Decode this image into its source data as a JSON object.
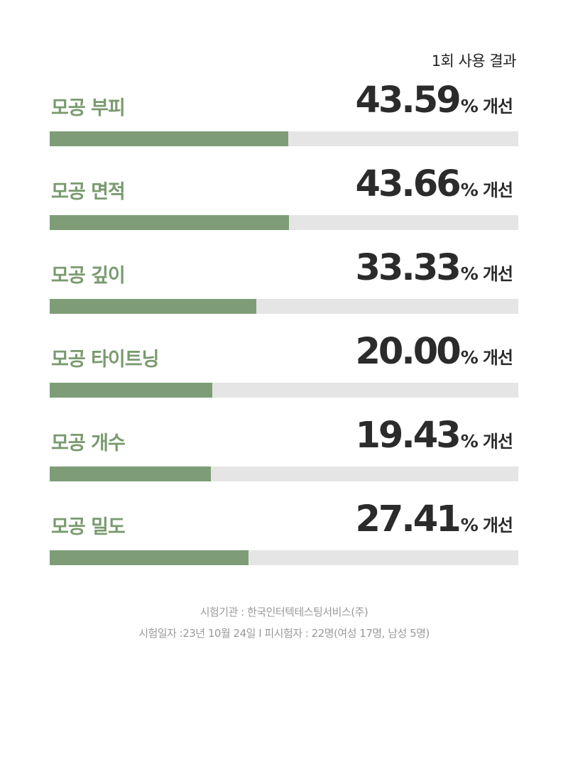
{
  "caption": "1회 사용 결과",
  "accent_color": "#7e9d77",
  "track_color": "#e5e5e5",
  "percent_sign": "%",
  "suffix": "개선",
  "metrics": [
    {
      "label": "모공 부피",
      "value": "43.59",
      "fraction": 0.5086
    },
    {
      "label": "모공 면적",
      "value": "43.66",
      "fraction": 0.5102
    },
    {
      "label": "모공 깊이",
      "value": "33.33",
      "fraction": 0.4402
    },
    {
      "label": "모공 타이트닝",
      "value": "20.00",
      "fraction": 0.3477
    },
    {
      "label": "모공 개수",
      "value": "19.43",
      "fraction": 0.3437
    },
    {
      "label": "모공 밀도",
      "value": "27.41",
      "fraction": 0.4235
    }
  ],
  "footer": {
    "institution": "시험기관 : 한국인터텍테스팅서비스(주)",
    "details": "시험일자 :23년 10월 24일 I 피시험자 : 22명(여성 17명, 남성 5명)"
  }
}
